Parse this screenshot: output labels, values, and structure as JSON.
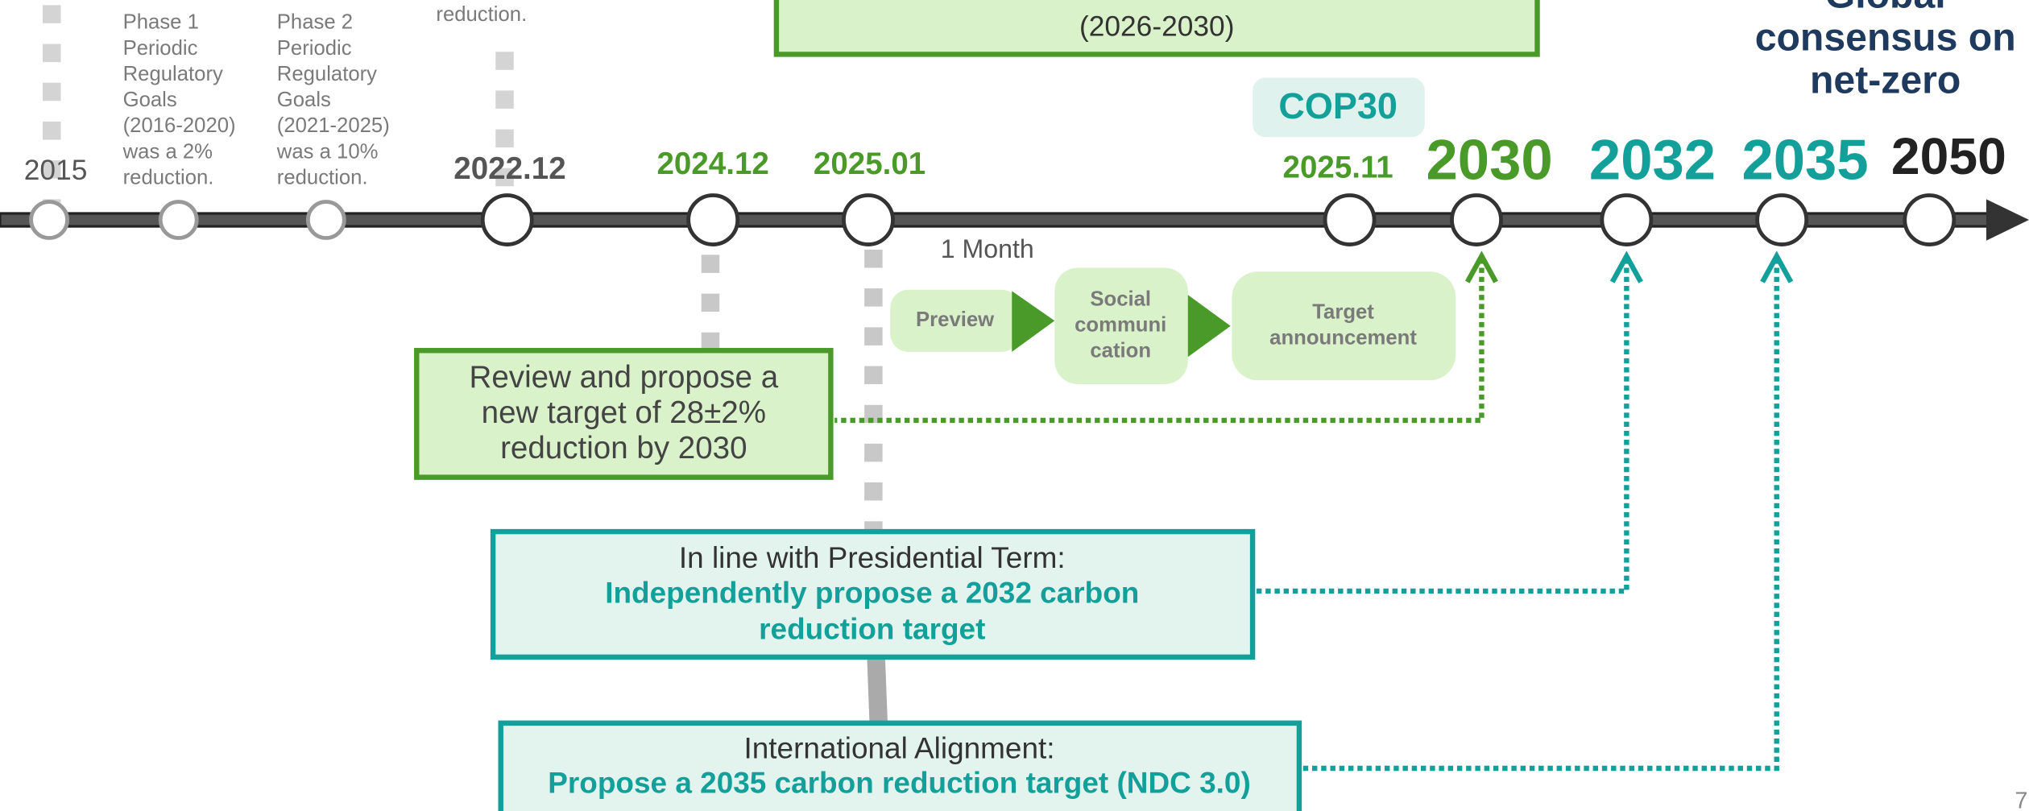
{
  "milestones": [
    "2015",
    "2022.12",
    "2024.12",
    "2025.01",
    "2025.11",
    "2030",
    "2032",
    "2035",
    "2050"
  ],
  "phases": [
    {
      "lines": [
        "Phase 1",
        "Periodic",
        "Regulatory",
        "Goals",
        "(2016-2020)",
        "was a 2%",
        "reduction."
      ]
    },
    {
      "lines": [
        "Phase 2",
        "Periodic",
        "Regulatory",
        "Goals",
        "(2021-2025)",
        "was a 10%",
        "reduction."
      ]
    }
  ],
  "cut_note": "reduction.",
  "top_box": {
    "subtitle": "(2026-2030)"
  },
  "cop_label": "COP30",
  "global_note": [
    "Global",
    "consensus on",
    "net-zero"
  ],
  "duration": "1 Month",
  "steps": [
    [
      "Preview"
    ],
    [
      "Social",
      "communi",
      "cation"
    ],
    [
      "Target",
      "announcement"
    ]
  ],
  "review_box": [
    "Review and propose a",
    "new target of 28±2%",
    "reduction by 2030"
  ],
  "presidential_box": {
    "heading": "In line with Presidential Term:",
    "body": [
      "Independently propose a 2032 carbon",
      "reduction target"
    ]
  },
  "international_box": {
    "heading": "International Alignment:",
    "body": [
      "Propose a 2035 carbon reduction target (NDC 3.0)"
    ]
  },
  "page_number": "7"
}
